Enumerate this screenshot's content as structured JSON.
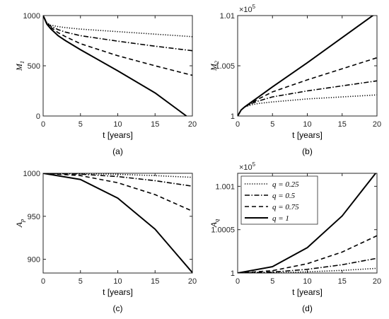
{
  "chart_data": [
    {
      "type": "line",
      "caption": "(a)",
      "xlabel": "t [years]",
      "ylabel": "M",
      "ylabel_sub": "1",
      "xlim": [
        0,
        20
      ],
      "ylim": [
        0,
        1000
      ],
      "xticks": [
        0,
        5,
        10,
        15,
        20
      ],
      "yticks": [
        0,
        500,
        1000
      ],
      "ytick_labels": [
        "0",
        "500",
        "1000"
      ],
      "exponent": "",
      "series": [
        {
          "q": 0.25,
          "x": [
            0,
            0.5,
            1,
            2,
            3,
            5,
            10,
            15,
            20
          ],
          "y": [
            1000,
            930,
            905,
            890,
            880,
            865,
            840,
            815,
            790
          ]
        },
        {
          "q": 0.5,
          "x": [
            0,
            0.5,
            1,
            2,
            3,
            5,
            10,
            15,
            20
          ],
          "y": [
            1000,
            925,
            895,
            860,
            835,
            800,
            745,
            695,
            650
          ]
        },
        {
          "q": 0.75,
          "x": [
            0,
            0.5,
            1,
            2,
            3,
            5,
            10,
            15,
            20
          ],
          "y": [
            1000,
            920,
            885,
            830,
            790,
            720,
            600,
            500,
            405
          ]
        },
        {
          "q": 1,
          "x": [
            0,
            0.5,
            1,
            2,
            3,
            5,
            10,
            15,
            19.2
          ],
          "y": [
            1000,
            915,
            870,
            800,
            750,
            660,
            450,
            230,
            0
          ]
        }
      ]
    },
    {
      "type": "line",
      "caption": "(b)",
      "xlabel": "t [years]",
      "ylabel": "M",
      "ylabel_sub": "2",
      "xlim": [
        0,
        20
      ],
      "ylim": [
        1,
        1.01
      ],
      "xticks": [
        0,
        5,
        10,
        15,
        20
      ],
      "yticks": [
        1,
        1.005,
        1.01
      ],
      "ytick_labels": [
        "1",
        "1.005",
        "1.01"
      ],
      "exponent": "×10",
      "exponent_power": "5",
      "series": [
        {
          "q": 0.25,
          "x": [
            0,
            0.5,
            1,
            2,
            3,
            5,
            10,
            15,
            20
          ],
          "y": [
            1.0,
            1.0006,
            1.0009,
            1.00112,
            1.00125,
            1.0014,
            1.0017,
            1.0019,
            1.0021
          ]
        },
        {
          "q": 0.5,
          "x": [
            0,
            0.5,
            1,
            2,
            3,
            5,
            10,
            15,
            20
          ],
          "y": [
            1.0,
            1.0006,
            1.0009,
            1.00125,
            1.0015,
            1.0019,
            1.0025,
            1.003,
            1.0035
          ]
        },
        {
          "q": 0.75,
          "x": [
            0,
            0.5,
            1,
            2,
            3,
            5,
            10,
            15,
            20
          ],
          "y": [
            1.0,
            1.0006,
            1.0009,
            1.0013,
            1.0017,
            1.0024,
            1.0036,
            1.0047,
            1.0058
          ]
        },
        {
          "q": 1,
          "x": [
            0,
            0.5,
            1,
            2,
            3,
            5,
            10,
            15,
            20
          ],
          "y": [
            1.0,
            1.0006,
            1.0009,
            1.0014,
            1.0019,
            1.0029,
            1.0053,
            1.0078,
            1.0103
          ]
        }
      ]
    },
    {
      "type": "line",
      "caption": "(c)",
      "xlabel": "t [years]",
      "ylabel": "A",
      "ylabel_sub": "p",
      "xlim": [
        0,
        20
      ],
      "ylim": [
        884,
        1000
      ],
      "xticks": [
        0,
        5,
        10,
        15,
        20
      ],
      "yticks": [
        900,
        950,
        1000
      ],
      "ytick_labels": [
        "900",
        "950",
        "1000"
      ],
      "exponent": "",
      "series": [
        {
          "q": 0.25,
          "x": [
            0,
            5,
            10,
            15,
            20
          ],
          "y": [
            1000,
            999.7,
            998.8,
            997.3,
            995.3
          ]
        },
        {
          "q": 0.5,
          "x": [
            0,
            5,
            10,
            15,
            20
          ],
          "y": [
            1000,
            999,
            996.2,
            991.4,
            985
          ]
        },
        {
          "q": 0.75,
          "x": [
            0,
            5,
            10,
            15,
            20
          ],
          "y": [
            1000,
            997.3,
            989,
            975.2,
            956
          ]
        },
        {
          "q": 1,
          "x": [
            0,
            5,
            10,
            15,
            20
          ],
          "y": [
            1000,
            992.8,
            971.1,
            935,
            884.5
          ]
        }
      ]
    },
    {
      "type": "line",
      "caption": "(d)",
      "xlabel": "t [years]",
      "ylabel": "A",
      "ylabel_sub": "q",
      "xlim": [
        0,
        20
      ],
      "ylim": [
        1,
        1.00115
      ],
      "xticks": [
        0,
        5,
        10,
        15,
        20
      ],
      "yticks": [
        1,
        1.0005,
        1.001
      ],
      "ytick_labels": [
        "1",
        "1.0005",
        "1.001"
      ],
      "exponent": "×10",
      "exponent_power": "5",
      "legend": {
        "loc": "top-left",
        "entries": [
          "q = 0.25",
          "q = 0.5",
          "q = 0.75",
          "q = 1"
        ]
      },
      "series": [
        {
          "q": 0.25,
          "x": [
            0,
            5,
            10,
            15,
            20
          ],
          "y": [
            1.0,
            1.0000034,
            1.0000135,
            1.0000304,
            1.000054
          ]
        },
        {
          "q": 0.5,
          "x": [
            0,
            5,
            10,
            15,
            20
          ],
          "y": [
            1.0,
            1.0000106,
            1.0000425,
            1.0000956,
            1.00017
          ]
        },
        {
          "q": 0.75,
          "x": [
            0,
            5,
            10,
            15,
            20
          ],
          "y": [
            1.0,
            1.0000269,
            1.0001075,
            1.0002419,
            1.00043
          ]
        },
        {
          "q": 1,
          "x": [
            0,
            5,
            10,
            15,
            20
          ],
          "y": [
            1.0,
            1.0000731,
            1.0002925,
            1.0006581,
            1.00117
          ]
        }
      ]
    }
  ],
  "styles": {
    "dashes": [
      "1.2,2.2",
      "7,2.5,1.5,2.5",
      "6,4",
      ""
    ],
    "color": "#000000"
  }
}
